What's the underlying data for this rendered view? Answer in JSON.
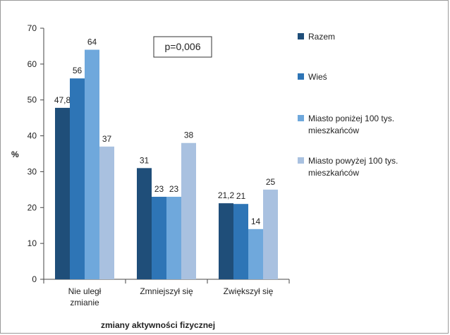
{
  "chart_data": {
    "type": "bar",
    "categories": [
      [
        "Nie uległ",
        "zmianie"
      ],
      [
        "Zmniejszył się"
      ],
      [
        "Zwiększył się"
      ]
    ],
    "series": [
      {
        "name": "Razem",
        "values": [
          47.8,
          31,
          21.2
        ],
        "labels": [
          "47,8",
          "31",
          "21,2"
        ],
        "color": "#1f4e79"
      },
      {
        "name": "Wieś",
        "values": [
          56,
          23,
          21
        ],
        "labels": [
          "56",
          "23",
          "21"
        ],
        "color": "#2e75b6"
      },
      {
        "name": [
          "Miasto poniżej 100 tys.",
          "mieszkańców"
        ],
        "values": [
          64,
          23,
          14
        ],
        "labels": [
          "64",
          "23",
          "14"
        ],
        "color": "#6fa8dc"
      },
      {
        "name": [
          "Miasto powyżej 100 tys.",
          "mieszkańców"
        ],
        "values": [
          37,
          38,
          25
        ],
        "labels": [
          "37",
          "38",
          "25"
        ],
        "color": "#a9c1e0"
      }
    ],
    "yticks": [
      "0",
      "10",
      "20",
      "30",
      "40",
      "50",
      "60",
      "70"
    ],
    "ylim": [
      0,
      70
    ],
    "ylabel": "%",
    "xlabel": "zmiany aktywności fizycznej",
    "annotation": "p=0,006",
    "legend_position": "right",
    "grid": false
  }
}
